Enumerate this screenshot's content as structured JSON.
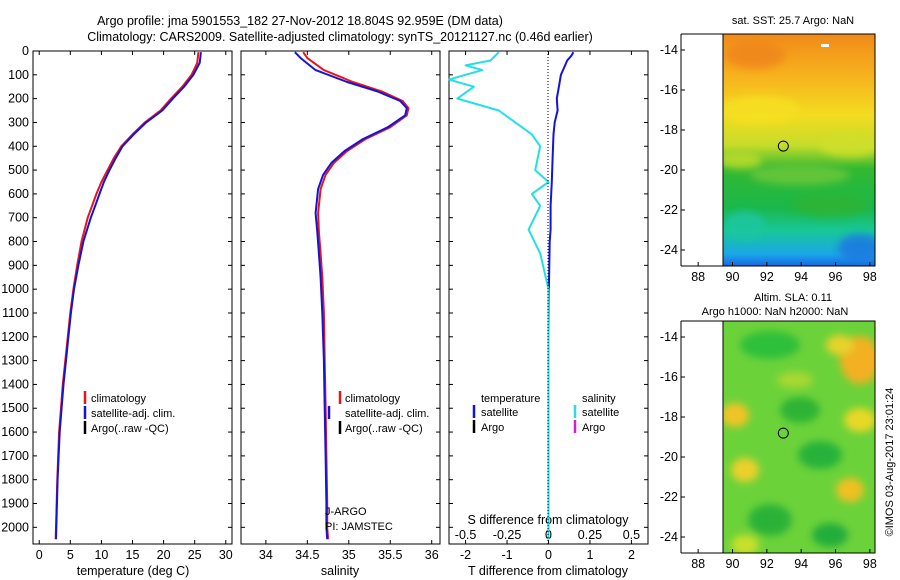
{
  "header": {
    "line1": "Argo profile: jma 5901553_182 27-Nov-2012 18.804S 92.959E (DM data)",
    "line2": "Climatology: CARS2009. Satellite-adjusted climatology: synTS_20121127.nc (0.46d earlier)"
  },
  "colors": {
    "climatology": "#e8141c",
    "satellite": "#1414d8",
    "argo": "#000000",
    "sat_salinity": "#22dfe6",
    "argo_salinity": "#d020d0"
  },
  "legends": {
    "climatology": "climatology",
    "satellite_adj": "satellite-adj. clim.",
    "argo_raw": "Argo(..raw -QC)",
    "temperature": "temperature",
    "salinity": "salinity",
    "satellite": "satellite",
    "argo": "Argo"
  },
  "credit": {
    "line1": "J-ARGO",
    "line2": "PI: JAMSTEC"
  },
  "map_titles": {
    "sst": "sat. SST: 25.7 Argo: NaN",
    "sla_line1": "Altim. SLA: 0.11",
    "sla_line2": "Argo h1000: NaN h2000: NaN"
  },
  "stamp": "©IMOS 03-Aug-2017 23:01:24",
  "chart_data": [
    {
      "type": "line",
      "name": "temperature",
      "xlabel": "temperature (deg C)",
      "ylabel": "",
      "xlim": [
        -1,
        31
      ],
      "ylim": [
        2070,
        0
      ],
      "xticks": [
        0,
        5,
        10,
        15,
        20,
        25,
        30
      ],
      "yticks": [
        0,
        100,
        200,
        300,
        400,
        500,
        600,
        700,
        800,
        900,
        1000,
        1100,
        1200,
        1300,
        1400,
        1500,
        1600,
        1700,
        1800,
        1900,
        2000
      ],
      "series": [
        {
          "name": "climatology",
          "color": "#e8141c",
          "x": [
            25.6,
            25.4,
            24.5,
            23.0,
            21.2,
            19.5,
            17.0,
            15.0,
            13.2,
            12.0,
            11.0,
            10.0,
            9.2,
            8.5,
            7.8,
            7.3,
            6.8,
            6.1,
            5.5,
            5.0,
            4.6,
            4.2,
            3.8,
            3.5,
            3.2,
            2.9,
            2.65
          ],
          "y": [
            5,
            50,
            100,
            150,
            200,
            250,
            300,
            350,
            400,
            450,
            500,
            550,
            600,
            650,
            700,
            750,
            800,
            900,
            1000,
            1100,
            1200,
            1300,
            1400,
            1500,
            1600,
            1800,
            2050
          ]
        },
        {
          "name": "satellite-adj. clim.",
          "color": "#1414d8",
          "x": [
            26.0,
            25.8,
            24.8,
            23.3,
            21.5,
            19.8,
            17.2,
            15.2,
            13.4,
            12.3,
            11.3,
            10.4,
            9.7,
            9.0,
            8.3,
            7.7,
            7.1,
            6.3,
            5.6,
            5.1,
            4.7,
            4.3,
            3.9,
            3.6,
            3.3,
            2.95,
            2.7
          ],
          "y": [
            5,
            50,
            100,
            150,
            200,
            250,
            300,
            350,
            400,
            450,
            500,
            550,
            600,
            650,
            700,
            750,
            800,
            900,
            1000,
            1100,
            1200,
            1300,
            1400,
            1500,
            1600,
            1800,
            2050
          ]
        },
        {
          "name": "Argo",
          "color": "#000000",
          "x": [
            26.0,
            25.9,
            24.9,
            23.4,
            21.6,
            19.8,
            17.2,
            15.2,
            13.4,
            12.3,
            11.3,
            10.4,
            9.7,
            9.0,
            8.3,
            7.7,
            7.1,
            6.3,
            5.6,
            5.1,
            4.7,
            4.3,
            3.9,
            3.6,
            3.3,
            2.95,
            2.7
          ],
          "y": [
            5,
            50,
            100,
            150,
            200,
            250,
            300,
            350,
            400,
            450,
            500,
            550,
            600,
            650,
            700,
            750,
            800,
            900,
            1000,
            1100,
            1200,
            1300,
            1400,
            1500,
            1600,
            1800,
            2050
          ]
        }
      ]
    },
    {
      "type": "line",
      "name": "salinity",
      "xlabel": "salinity",
      "xlim": [
        33.7,
        36.1
      ],
      "ylim": [
        2070,
        0
      ],
      "xticks": [
        34,
        34.5,
        35,
        35.5,
        36
      ],
      "series": [
        {
          "name": "climatology",
          "color": "#e8141c",
          "x": [
            34.45,
            34.5,
            34.7,
            35.05,
            35.4,
            35.65,
            35.72,
            35.7,
            35.5,
            35.2,
            34.98,
            34.82,
            34.72,
            34.66,
            34.63,
            34.64,
            34.66,
            34.68,
            34.7,
            34.71,
            34.72,
            34.73,
            34.74,
            34.74,
            34.75
          ],
          "y": [
            5,
            30,
            80,
            130,
            170,
            210,
            240,
            270,
            320,
            370,
            420,
            470,
            520,
            580,
            680,
            760,
            850,
            950,
            1100,
            1300,
            1500,
            1700,
            1900,
            2000,
            2050
          ]
        },
        {
          "name": "satellite-adj. clim.",
          "color": "#1414d8",
          "x": [
            34.35,
            34.42,
            34.6,
            34.98,
            35.35,
            35.62,
            35.7,
            35.68,
            35.47,
            35.17,
            34.95,
            34.79,
            34.69,
            34.63,
            34.6,
            34.62,
            34.64,
            34.66,
            34.68,
            34.7,
            34.71,
            34.72,
            34.73,
            34.73,
            34.74
          ],
          "y": [
            5,
            30,
            80,
            130,
            170,
            210,
            240,
            270,
            320,
            370,
            420,
            470,
            520,
            580,
            680,
            760,
            850,
            950,
            1100,
            1300,
            1500,
            1700,
            1900,
            2000,
            2050
          ]
        },
        {
          "name": "Argo",
          "color": "#000000",
          "x": [
            34.35,
            34.42,
            34.6,
            34.98,
            35.35,
            35.62,
            35.7,
            35.68,
            35.47,
            35.17,
            34.95,
            34.79,
            34.69,
            34.63,
            34.6,
            34.62,
            34.64,
            34.66,
            34.68,
            34.7,
            34.71,
            34.72,
            34.73,
            34.73,
            34.74
          ],
          "y": [
            5,
            30,
            80,
            130,
            170,
            210,
            240,
            270,
            320,
            370,
            420,
            470,
            520,
            580,
            680,
            760,
            850,
            950,
            1100,
            1300,
            1500,
            1700,
            1900,
            2000,
            2050
          ]
        }
      ]
    },
    {
      "type": "line",
      "name": "difference",
      "xlabel": "T difference from climatology",
      "xlabel_top": "S difference from climatology",
      "xlim": [
        -2.4,
        2.4
      ],
      "ylim": [
        2070,
        0
      ],
      "xticks": [
        -2,
        -1,
        0,
        1,
        2
      ],
      "xticks_top": [
        -0.5,
        -0.25,
        0,
        0.25,
        0.5
      ],
      "series": [
        {
          "name": "temperature satellite",
          "color": "#1414d8",
          "x": [
            0.6,
            0.55,
            0.45,
            0.4,
            0.35,
            0.3,
            0.25,
            0.2,
            0.22,
            0.15,
            0.12,
            0.1,
            0.08,
            0.05,
            0.05,
            0.03,
            0.02,
            0.01,
            0.0,
            0.0,
            0.0,
            0.0
          ],
          "y": [
            5,
            20,
            40,
            60,
            80,
            100,
            150,
            200,
            250,
            300,
            350,
            450,
            550,
            650,
            750,
            800,
            900,
            1000,
            1200,
            1500,
            1800,
            2050
          ]
        },
        {
          "name": "salinity satellite",
          "color": "#22dfe6",
          "x": [
            -0.3,
            -0.35,
            -0.5,
            -0.4,
            -0.6,
            -0.45,
            -0.55,
            -0.3,
            -0.2,
            -0.1,
            -0.05,
            -0.08,
            0.0,
            -0.1,
            -0.05,
            -0.12,
            -0.05,
            0.0,
            0.0,
            0.0
          ],
          "y": [
            5,
            40,
            60,
            80,
            120,
            150,
            200,
            250,
            300,
            350,
            400,
            500,
            550,
            600,
            650,
            750,
            850,
            1000,
            1500,
            2050
          ]
        }
      ]
    },
    {
      "type": "heatmap",
      "name": "sat-sst-map",
      "xlim": [
        87,
        98.3
      ],
      "ylim": [
        -24.8,
        -13.2
      ],
      "xticks": [
        88,
        90,
        92,
        94,
        96,
        98
      ],
      "yticks": [
        -14,
        -16,
        -18,
        -20,
        -22,
        -24
      ],
      "marker": {
        "lon": 92.959,
        "lat": -18.804
      }
    },
    {
      "type": "heatmap",
      "name": "altim-sla-map",
      "xlim": [
        87,
        98.3
      ],
      "ylim": [
        -24.8,
        -13.2
      ],
      "xticks": [
        88,
        90,
        92,
        94,
        96,
        98
      ],
      "yticks": [
        -14,
        -16,
        -18,
        -20,
        -22,
        -24
      ],
      "marker": {
        "lon": 92.959,
        "lat": -18.804
      }
    }
  ]
}
